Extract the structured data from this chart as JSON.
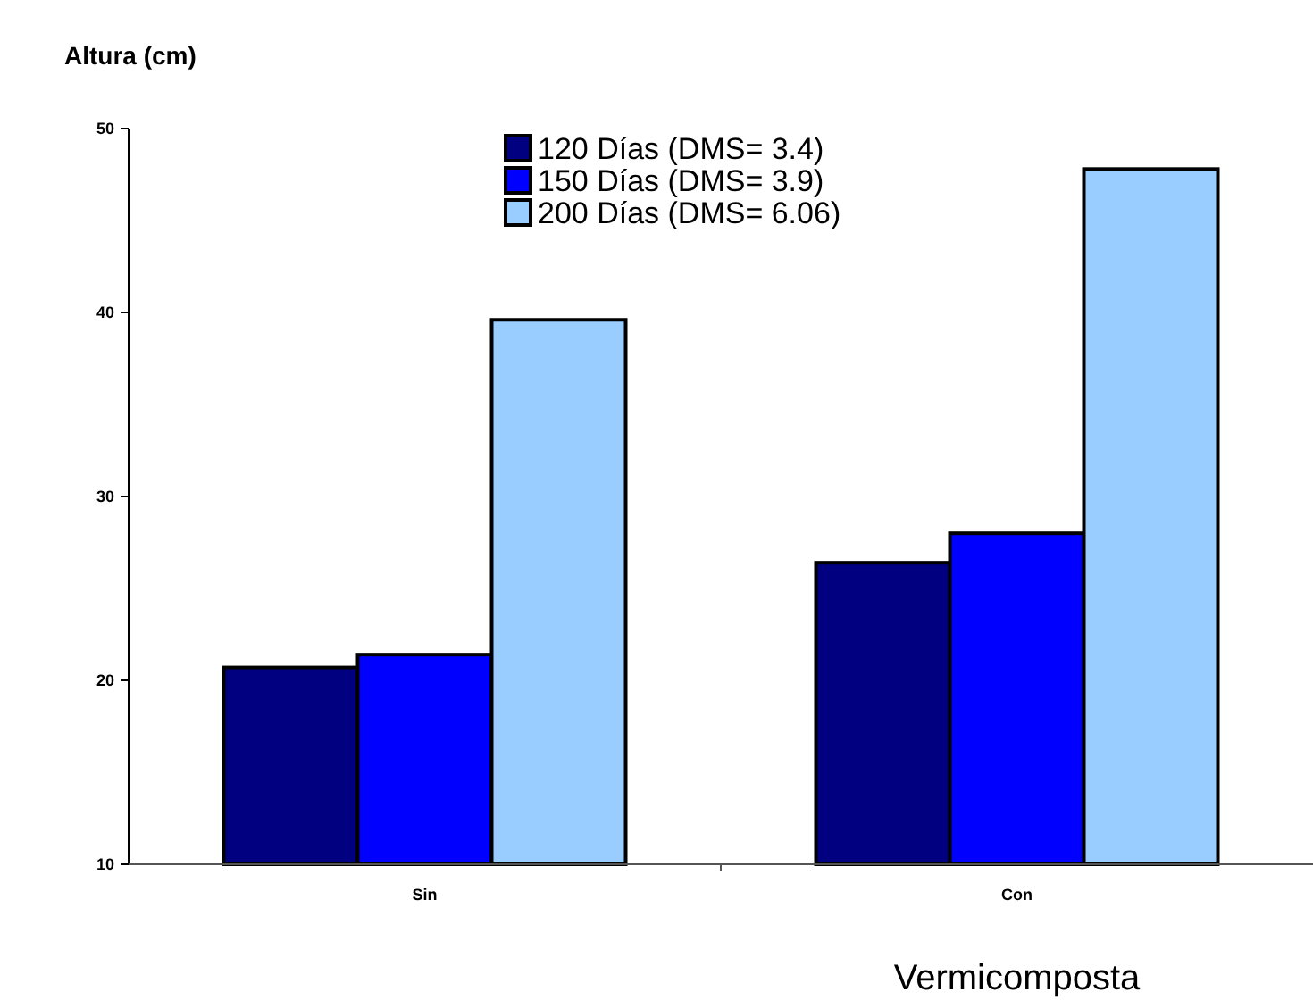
{
  "chart_data": {
    "type": "bar",
    "title": "Altura (cm)",
    "xlabel": "Vermicomposta",
    "categories": [
      "Sin",
      "Con"
    ],
    "series": [
      {
        "name": "120 Días (DMS= 3.4)",
        "color": "#000080",
        "values": [
          20.7,
          26.4
        ]
      },
      {
        "name": "150 Días (DMS= 3.9)",
        "color": "#0000ff",
        "values": [
          21.4,
          28.0
        ]
      },
      {
        "name": "200 Días (DMS= 6.06)",
        "color": "#99ccff",
        "values": [
          39.6,
          47.8
        ]
      }
    ],
    "ylim": [
      10,
      50
    ],
    "yticks": [
      10,
      20,
      30,
      40,
      50
    ],
    "grid": false,
    "legend": "top"
  }
}
